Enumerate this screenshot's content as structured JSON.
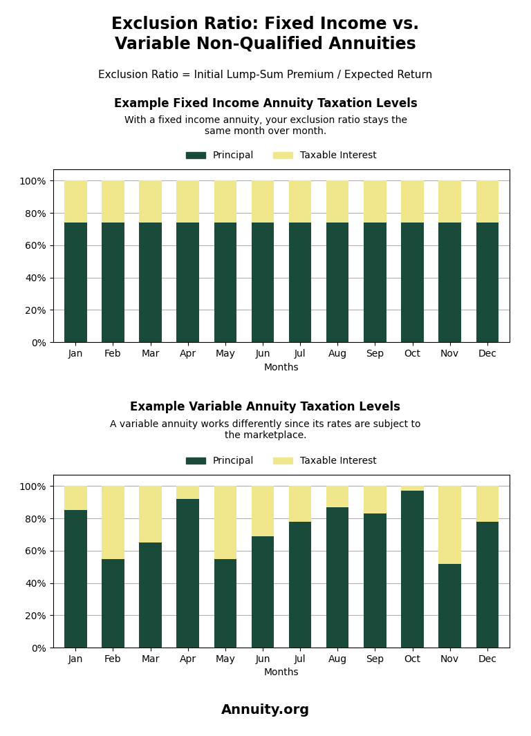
{
  "title": "Exclusion Ratio: Fixed Income vs.\nVariable Non-Qualified Annuities",
  "subtitle": "Exclusion Ratio = Initial Lump-Sum Premium / Expected Return",
  "annotations": [
    "Annuity.org"
  ],
  "chart_data": [
    {
      "type": "bar",
      "stacked": true,
      "title": "Example Fixed Income Annuity Taxation Levels",
      "subtitle": "With a fixed income annuity, your exclusion ratio stays the\nsame month over month.",
      "x_label": "Months",
      "categories": [
        "Jan",
        "Feb",
        "Mar",
        "Apr",
        "May",
        "Jun",
        "Jul",
        "Aug",
        "Sep",
        "Oct",
        "Nov",
        "Dec"
      ],
      "series": [
        {
          "name": "Principal",
          "color": "#1a4a3a",
          "values": [
            74,
            74,
            74,
            74,
            74,
            74,
            74,
            74,
            74,
            74,
            74,
            74
          ]
        },
        {
          "name": "Taxable Interest",
          "color": "#f0e68c",
          "values": [
            26,
            26,
            26,
            26,
            26,
            26,
            26,
            26,
            26,
            26,
            26,
            26
          ]
        }
      ],
      "ylim": [
        0,
        107
      ],
      "yticks": [
        {
          "value": 0,
          "label": "0%"
        },
        {
          "value": 20,
          "label": "20%"
        },
        {
          "value": 40,
          "label": "40%"
        },
        {
          "value": 60,
          "label": "60%"
        },
        {
          "value": 80,
          "label": "80%"
        },
        {
          "value": 100,
          "label": "100%"
        }
      ],
      "grid": true,
      "legend": "lower center"
    },
    {
      "type": "bar",
      "stacked": true,
      "title": "Example Variable Annuity Taxation Levels",
      "subtitle": "A variable annuity works differently since its rates are subject to\nthe marketplace.",
      "x_label": "Months",
      "categories": [
        "Jan",
        "Feb",
        "Mar",
        "Apr",
        "May",
        "Jun",
        "Jul",
        "Aug",
        "Sep",
        "Oct",
        "Nov",
        "Dec"
      ],
      "series": [
        {
          "name": "Principal",
          "color": "#1a4a3a",
          "values": [
            85,
            55,
            65,
            92,
            55,
            69,
            78,
            87,
            83,
            97,
            52,
            78
          ]
        },
        {
          "name": "Taxable Interest",
          "color": "#f0e68c",
          "values": [
            15,
            45,
            35,
            8,
            45,
            31,
            22,
            13,
            17,
            3,
            48,
            22
          ]
        }
      ],
      "ylim": [
        0,
        107
      ],
      "yticks": [
        {
          "value": 0,
          "label": "0%"
        },
        {
          "value": 20,
          "label": "20%"
        },
        {
          "value": 40,
          "label": "40%"
        },
        {
          "value": 60,
          "label": "60%"
        },
        {
          "value": 80,
          "label": "80%"
        },
        {
          "value": 100,
          "label": "100%"
        }
      ],
      "grid": true,
      "legend": "lower center"
    }
  ]
}
